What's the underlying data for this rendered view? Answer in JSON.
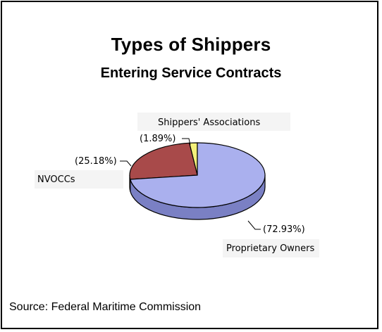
{
  "chart_data": {
    "type": "pie",
    "title": "Types of Shippers",
    "subtitle": "Entering Service Contracts",
    "slices": [
      {
        "category": "Proprietary Owners",
        "value": 72.93,
        "pct_label": "(72.93%)",
        "color": "#aab0ee"
      },
      {
        "category": "NVOCCs",
        "value": 25.18,
        "pct_label": "(25.18%)",
        "color": "#a84a4a"
      },
      {
        "category": "Shippers' Associations",
        "value": 1.89,
        "pct_label": "(1.89%)",
        "color": "#f4f07a"
      }
    ],
    "source": "Source: Federal Maritime Commission"
  },
  "colors": {
    "proprietary_side": "#7a80c4",
    "nvocc_side": "#6e2a2a",
    "associations_side": "#b8b040",
    "label_box": "#f4f4f4"
  }
}
